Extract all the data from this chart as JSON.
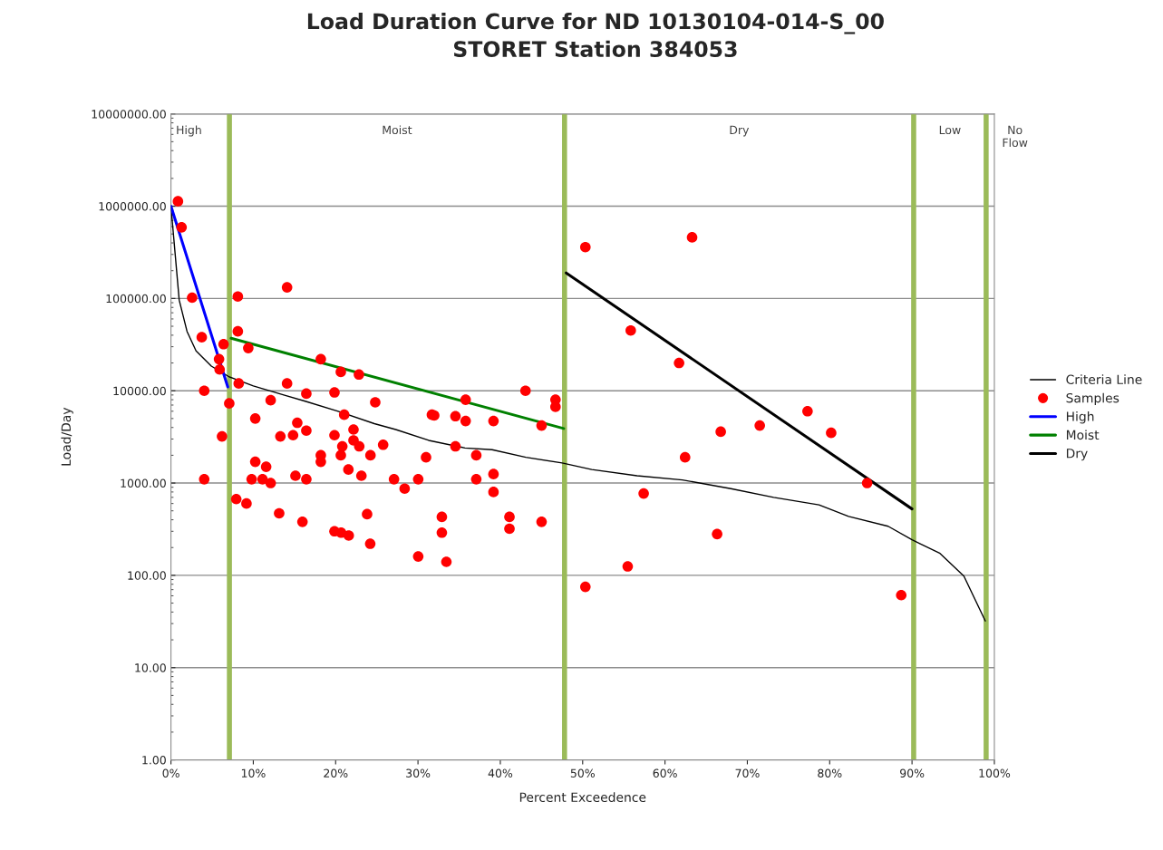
{
  "chart_data": {
    "type": "scatter",
    "title": "Load Duration Curve for ND 10130104-014-S_00\nSTORET Station 384053",
    "xlabel": "Percent Exceedence",
    "ylabel": "Load/Day",
    "log": "y",
    "grid": "y",
    "legend": "right",
    "xlim": [
      0,
      100
    ],
    "xticks": [
      {
        "value": 0,
        "label": "0%"
      },
      {
        "value": 10,
        "label": "10%"
      },
      {
        "value": 20,
        "label": "20%"
      },
      {
        "value": 30,
        "label": "30%"
      },
      {
        "value": 40,
        "label": "40%"
      },
      {
        "value": 50,
        "label": "50%"
      },
      {
        "value": 60,
        "label": "60%"
      },
      {
        "value": 70,
        "label": "70%"
      },
      {
        "value": 80,
        "label": "80%"
      },
      {
        "value": 90,
        "label": "90%"
      },
      {
        "value": 100,
        "label": "100%"
      }
    ],
    "ylim": [
      1,
      10000000
    ],
    "yticks": [
      {
        "value": 1,
        "label": "1.00"
      },
      {
        "value": 10,
        "label": "10.00"
      },
      {
        "value": 100,
        "label": "100.00"
      },
      {
        "value": 1000,
        "label": "1000.00"
      },
      {
        "value": 10000,
        "label": "10000.00"
      },
      {
        "value": 100000,
        "label": "100000.00"
      },
      {
        "value": 1000000,
        "label": "1000000.00"
      },
      {
        "value": 10000000,
        "label": "10000000.00"
      }
    ],
    "series": [
      {
        "name": "Criteria Line",
        "type": "line",
        "color": "#000000",
        "marker": "none",
        "line_style": "solid",
        "x": [
          0,
          1.0,
          1.95,
          3.05,
          4.9,
          7.1,
          10.0,
          13.7,
          16.3,
          20.3,
          24.7,
          27.3,
          31.3,
          35.7,
          39.0,
          43.1,
          47.5,
          51.1,
          56.6,
          62.1,
          68.0,
          73.2,
          78.7,
          82.3,
          87.1,
          90.0,
          93.4,
          96.3,
          98.9
        ],
        "values": [
          1000000,
          96000,
          44000,
          27000,
          18500,
          14100,
          11300,
          9000,
          7700,
          6000,
          4400,
          3800,
          2900,
          2400,
          2300,
          1900,
          1650,
          1400,
          1200,
          1080,
          870,
          700,
          580,
          435,
          340,
          243,
          173,
          98,
          32
        ]
      },
      {
        "name": "Samples",
        "type": "scatter",
        "color": "#ff0000",
        "marker": "circle",
        "x": [
          0.85,
          1.29,
          2.57,
          3.74,
          5.84,
          5.91,
          6.39,
          8.12,
          8.12,
          9.39,
          14.1,
          4.04,
          7.08,
          8.23,
          6.2,
          4.04,
          14.1,
          18.2,
          20.63,
          22.83,
          12.11,
          16.44,
          19.86,
          24.81,
          10.24,
          15.34,
          16.44,
          21.04,
          22.17,
          31.69,
          13.29,
          14.83,
          19.86,
          20.81,
          22.17,
          22.87,
          25.77,
          18.2,
          18.2,
          20.63,
          24.23,
          30.98,
          10.24,
          11.56,
          21.55,
          9.8,
          11.12,
          12.11,
          15.12,
          16.44,
          23.13,
          27.09,
          30.03,
          28.38,
          7.93,
          9.17,
          13.14,
          15.97,
          23.82,
          19.86,
          20.67,
          21.59,
          24.2,
          30.03,
          43.06,
          46.7,
          46.7,
          35.79,
          31.97,
          34.55,
          35.79,
          39.17,
          45.01,
          34.55,
          37.08,
          37.08,
          39.17,
          39.17,
          32.9,
          32.9,
          41.11,
          41.11,
          45.01,
          33.45,
          50.33,
          63.29,
          55.84,
          61.71,
          77.31,
          71.51,
          66.77,
          80.18,
          62.44,
          84.55,
          57.41,
          66.33,
          55.47,
          50.33,
          88.69
        ],
        "values": [
          1130000,
          590000,
          102000,
          38000,
          22000,
          17000,
          32000,
          105000,
          44000,
          29000,
          132000,
          10000,
          7300,
          12000,
          3200,
          1100,
          12000,
          22000,
          16000,
          15000,
          7900,
          9300,
          9600,
          7500,
          5000,
          4500,
          3700,
          5500,
          3800,
          5500,
          3200,
          3300,
          3300,
          2500,
          2900,
          2500,
          2600,
          2000,
          1700,
          2000,
          2000,
          1900,
          1700,
          1500,
          1400,
          1100,
          1100,
          1000,
          1200,
          1100,
          1200,
          1100,
          1100,
          870,
          670,
          600,
          470,
          380,
          460,
          300,
          290,
          270,
          220,
          160,
          10000,
          8000,
          6700,
          8000,
          5400,
          5300,
          4700,
          4700,
          4200,
          2500,
          2000,
          1100,
          1250,
          800,
          430,
          290,
          430,
          320,
          380,
          140,
          360000,
          460000,
          45000,
          20000,
          6000,
          4200,
          3600,
          3500,
          1900,
          1000,
          770,
          280,
          125,
          75,
          61
        ]
      },
      {
        "name": "High",
        "type": "line",
        "color": "#0000ff",
        "marker": "none",
        "line_style": "solid",
        "x": [
          0,
          6.9
        ],
        "values": [
          1000000,
          11000
        ]
      },
      {
        "name": "Moist",
        "type": "line",
        "color": "#008000",
        "marker": "none",
        "line_style": "solid",
        "x": [
          7.3,
          47.7
        ],
        "values": [
          37000,
          3900
        ]
      },
      {
        "name": "Dry",
        "type": "line",
        "color": "#000000",
        "marker": "none",
        "line_style": "solid",
        "x": [
          48.0,
          90.0
        ],
        "values": [
          189000,
          524
        ]
      }
    ],
    "ref_lines": [
      {
        "axis": "x",
        "value": 7.1,
        "color": "#9bbb59"
      },
      {
        "axis": "x",
        "value": 47.8,
        "color": "#9bbb59"
      },
      {
        "axis": "x",
        "value": 90.2,
        "color": "#9bbb59"
      },
      {
        "axis": "x",
        "value": 99.0,
        "color": "#9bbb59"
      }
    ],
    "annotations": [
      "High",
      "Moist",
      "Dry",
      "Low",
      "No\nFlow"
    ]
  }
}
